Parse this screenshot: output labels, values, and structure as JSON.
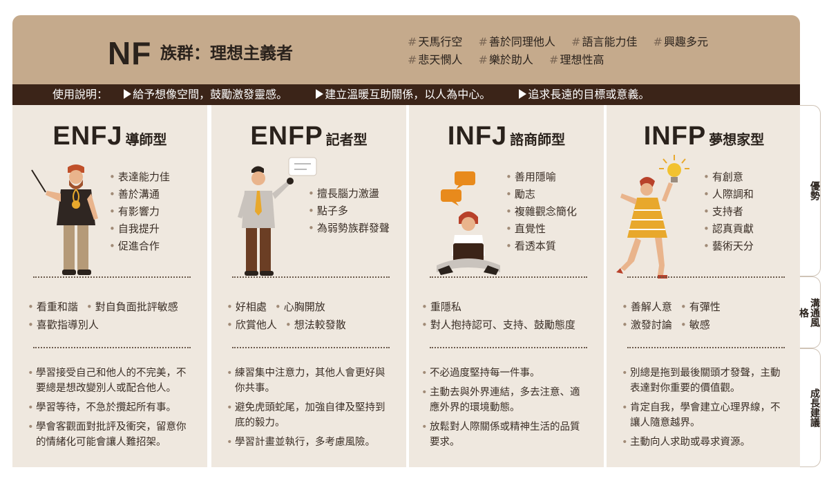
{
  "header": {
    "code": "NF",
    "subtitle": "族群：理想主義者",
    "tags": [
      "天馬行空",
      "善於同理他人",
      "語言能力佳",
      "興趣多元",
      "悲天憫人",
      "樂於助人",
      "理想性高"
    ],
    "tag_prefix": "#"
  },
  "usage": {
    "label": "使用說明：",
    "items": [
      "給予想像空間，鼓勵激發靈感。",
      "建立溫暖互助關係，以人為中心。",
      "追求長遠的目標或意義。"
    ]
  },
  "side_labels": [
    "優勢",
    "溝通風格",
    "成長建議"
  ],
  "types": [
    {
      "code": "ENFJ",
      "name": "導師型",
      "strengths": [
        "表達能力佳",
        "善於溝通",
        "有影響力",
        "自我提升",
        "促進合作"
      ],
      "communication": [
        "看重和諧",
        "對自負面批評敏感",
        "喜歡指導別人"
      ],
      "growth": [
        "學習接受自己和他人的不完美，不要總是想改變別人或配合他人。",
        "學習等待，不急於攬起所有事。",
        "學會客觀面對批評及衝突，留意你的情緒化可能會讓人難招架。"
      ]
    },
    {
      "code": "ENFP",
      "name": "記者型",
      "strengths": [
        "擅長腦力激盪",
        "點子多",
        "為弱勢族群發聲"
      ],
      "communication": [
        "好相處",
        "心胸開放",
        "欣賞他人",
        "想法較發散"
      ],
      "growth": [
        "練習集中注意力，其他人會更好與你共事。",
        "避免虎頭蛇尾，加強自律及堅持到底的毅力。",
        "學習計畫並執行，多考慮風險。"
      ]
    },
    {
      "code": "INFJ",
      "name": "諮商師型",
      "strengths": [
        "善用隱喻",
        "勵志",
        "複雜觀念簡化",
        "直覺性",
        "看透本質"
      ],
      "communication": [
        "重隱私",
        "對人抱持認可、支持、鼓勵態度"
      ],
      "growth": [
        "不必過度堅持每一件事。",
        "主動去與外界連結，多去注意、適應外界的環境動態。",
        "放鬆對人際關係或精神生活的品質要求。"
      ]
    },
    {
      "code": "INFP",
      "name": "夢想家型",
      "strengths": [
        "有創意",
        "人際調和",
        "支持者",
        "認真貢獻",
        "藝術天分"
      ],
      "communication": [
        "善解人意",
        "有彈性",
        "激發討論",
        "敏感"
      ],
      "growth": [
        "別總是拖到最後關頭才發聲，主動表達對你重要的價值觀。",
        "肯定自我，學會建立心理界線，不讓人隨意越界。",
        "主動向人求助或尋求資源。"
      ]
    }
  ],
  "colors": {
    "header_bg": "#c5aa8c",
    "bar_bg": "#3b2418",
    "card_bg": "#efe8df",
    "accent_orange": "#e88a1c"
  }
}
